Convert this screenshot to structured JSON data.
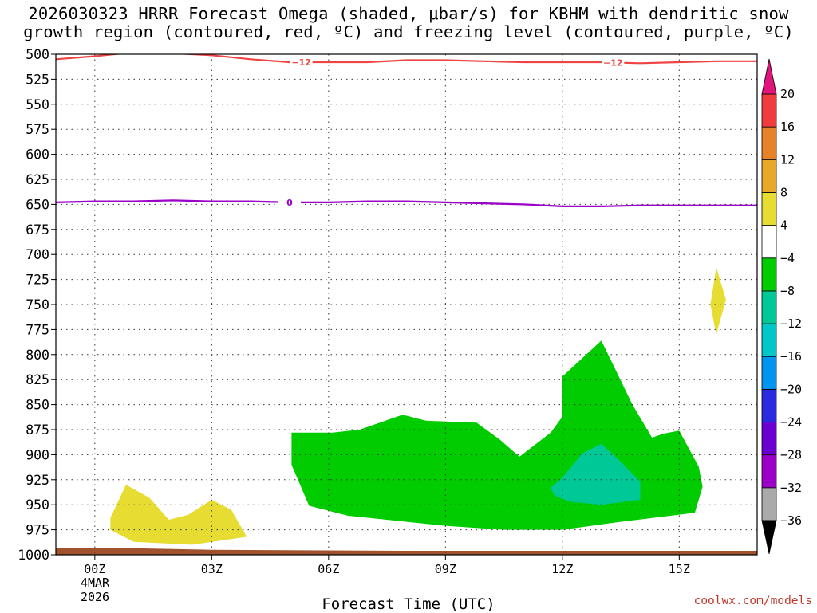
{
  "title_line1": "2026030323 HRRR Forecast Omega (shaded, μbar/s) for KBHM with dendritic snow",
  "title_line2": "growth region (contoured, red, ºC) and freezing level (contoured, purple, ºC)",
  "x_axis_title": "Forecast Time (UTC)",
  "credit": "coolwx.com/models",
  "date_label_line1": "4MAR",
  "date_label_line2": "2026",
  "chart_data": {
    "type": "heatmap",
    "title": "2026030323 HRRR Forecast Omega (shaded, μbar/s) for KBHM with dendritic snow growth region (contoured, red, ºC) and freezing level (contoured, purple, ºC)",
    "xlabel": "Forecast Time (UTC)",
    "ylabel": "",
    "x_unit": "hours after 00Z 4 MAR 2026",
    "xlim": [
      -1,
      17
    ],
    "ylim": [
      1000,
      500
    ],
    "x_ticks": [
      {
        "x": 0,
        "label": "00Z"
      },
      {
        "x": 3,
        "label": "03Z"
      },
      {
        "x": 6,
        "label": "06Z"
      },
      {
        "x": 9,
        "label": "09Z"
      },
      {
        "x": 12,
        "label": "12Z"
      },
      {
        "x": 15,
        "label": "15Z"
      }
    ],
    "y_ticks": [
      500,
      525,
      550,
      575,
      600,
      625,
      650,
      675,
      700,
      725,
      750,
      775,
      800,
      825,
      850,
      875,
      900,
      925,
      950,
      975,
      1000
    ],
    "grid": true,
    "colorbar": {
      "levels": [
        -36,
        -32,
        -28,
        -24,
        -20,
        -16,
        -12,
        -8,
        -4,
        4,
        8,
        12,
        16,
        20
      ],
      "colors": [
        "#aaaaaa",
        "#9b00c8",
        "#6a00d0",
        "#2a2ae0",
        "#0096f0",
        "#00c8c8",
        "#00c896",
        "#00cc00",
        "#ffffff",
        "#e6dc32",
        "#e6aa28",
        "#e68228",
        "#f03c3c",
        "#e0147a"
      ],
      "under_color": "#000000",
      "over_color": "#e0147a"
    },
    "shaded_regions": [
      {
        "category": "4 to 8",
        "color": "#e6dc32",
        "points": [
          [
            0.4,
            963
          ],
          [
            0.8,
            930
          ],
          [
            1.4,
            943
          ],
          [
            1.9,
            965
          ],
          [
            2.4,
            960
          ],
          [
            3.0,
            945
          ],
          [
            3.5,
            955
          ],
          [
            3.9,
            982
          ],
          [
            2.5,
            990
          ],
          [
            1.0,
            987
          ],
          [
            0.4,
            975
          ]
        ]
      },
      {
        "category": "4 to 8",
        "color": "#e6dc32",
        "points": [
          [
            15.95,
            713
          ],
          [
            16.2,
            745
          ],
          [
            15.95,
            780
          ],
          [
            15.8,
            750
          ]
        ]
      },
      {
        "category": "-8 to -4",
        "color": "#00cc00",
        "points": [
          [
            5.05,
            878
          ],
          [
            6.1,
            878
          ],
          [
            6.8,
            875
          ],
          [
            7.9,
            860
          ],
          [
            8.5,
            866
          ],
          [
            9.8,
            868
          ],
          [
            10.4,
            885
          ],
          [
            10.9,
            902
          ],
          [
            11.7,
            878
          ],
          [
            12.0,
            862
          ],
          [
            12.0,
            822
          ],
          [
            13.0,
            786
          ],
          [
            13.8,
            850
          ],
          [
            14.3,
            883
          ],
          [
            14.6,
            879
          ],
          [
            15.0,
            876
          ],
          [
            15.5,
            912
          ],
          [
            15.6,
            932
          ],
          [
            15.4,
            958
          ],
          [
            13.5,
            967
          ],
          [
            12.0,
            975
          ],
          [
            10.5,
            975
          ],
          [
            9.0,
            971
          ],
          [
            8.0,
            967
          ],
          [
            6.5,
            961
          ],
          [
            5.5,
            951
          ],
          [
            5.05,
            910
          ]
        ]
      },
      {
        "category": "-12 to -8",
        "color": "#00c896",
        "points": [
          [
            11.7,
            933
          ],
          [
            12.0,
            923
          ],
          [
            12.5,
            899
          ],
          [
            13.0,
            889
          ],
          [
            13.5,
            907
          ],
          [
            14.0,
            927
          ],
          [
            14.0,
            945
          ],
          [
            13.0,
            950
          ],
          [
            12.2,
            947
          ],
          [
            11.8,
            941
          ]
        ]
      },
      {
        "category": "surface",
        "color": "#a0522d",
        "points": [
          [
            -1,
            993
          ],
          [
            0.5,
            993
          ],
          [
            3.0,
            995
          ],
          [
            8.0,
            996
          ],
          [
            17,
            996
          ],
          [
            17,
            1005
          ],
          [
            -1,
            1005
          ]
        ]
      }
    ],
    "series": [
      {
        "name": "-12",
        "color": "#ef4444",
        "label_x": [
          5.3,
          13.3
        ],
        "points": [
          [
            -1,
            505
          ],
          [
            0,
            502
          ],
          [
            1,
            498
          ],
          [
            2,
            499
          ],
          [
            3,
            501
          ],
          [
            4,
            505
          ],
          [
            5,
            508
          ],
          [
            6,
            508
          ],
          [
            7,
            508
          ],
          [
            8,
            506
          ],
          [
            9,
            506
          ],
          [
            10,
            507
          ],
          [
            11,
            508
          ],
          [
            12,
            508
          ],
          [
            13,
            508
          ],
          [
            14,
            509
          ],
          [
            15,
            508
          ],
          [
            16,
            507
          ],
          [
            17,
            507
          ]
        ]
      },
      {
        "name": "0",
        "color": "#9b00c8",
        "label_x": [
          5.0
        ],
        "points": [
          [
            -1,
            648
          ],
          [
            0,
            647
          ],
          [
            1,
            647
          ],
          [
            2,
            646
          ],
          [
            3,
            647
          ],
          [
            4,
            647
          ],
          [
            5,
            648
          ],
          [
            6,
            648
          ],
          [
            7,
            647
          ],
          [
            8,
            647
          ],
          [
            9,
            648
          ],
          [
            10,
            649
          ],
          [
            11,
            650
          ],
          [
            12,
            652
          ],
          [
            13,
            652
          ],
          [
            14,
            651
          ],
          [
            15,
            651
          ],
          [
            16,
            651
          ],
          [
            17,
            651
          ]
        ]
      }
    ]
  }
}
